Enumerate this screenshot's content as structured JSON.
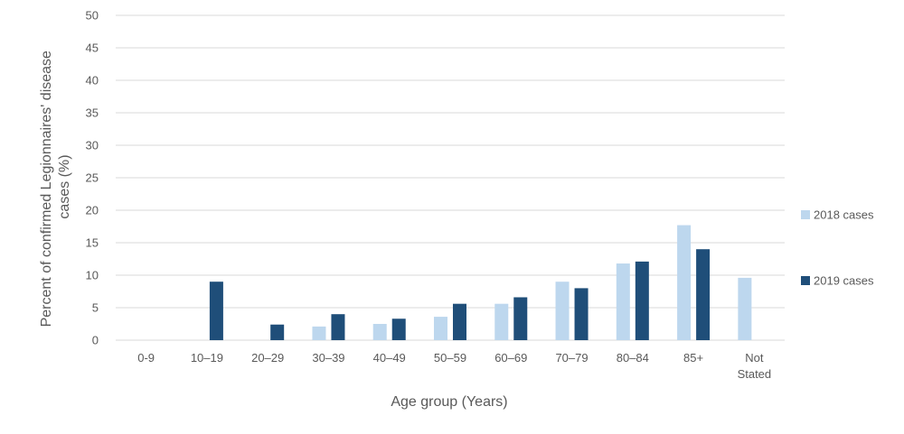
{
  "chart_data": {
    "type": "bar",
    "categories": [
      "0-9",
      "10–19",
      "20–29",
      "30–39",
      "40–49",
      "50–59",
      "60–69",
      "70–79",
      "80–84",
      "85+",
      "Not Stated"
    ],
    "series": [
      {
        "name": "2018 cases",
        "color": "#bdd7ee",
        "values": [
          0,
          0,
          0,
          2.1,
          2.5,
          3.6,
          5.6,
          9.0,
          11.8,
          17.7,
          9.6
        ]
      },
      {
        "name": "2019 cases",
        "color": "#1f4e79",
        "values": [
          0,
          9.0,
          2.4,
          4.0,
          3.3,
          5.6,
          6.6,
          8.0,
          12.1,
          14.0,
          0
        ]
      }
    ],
    "title": "",
    "xlabel": "Age group (Years)",
    "ylabel": "Percent of confirmed Legionnaires' disease cases (%)",
    "ylabel_lines": [
      "Percent of confirmed Legionnaires' disease",
      "cases (%)"
    ],
    "ylim": [
      0,
      50
    ],
    "yticks": [
      0,
      5,
      10,
      15,
      20,
      25,
      30,
      35,
      40,
      45,
      50
    ],
    "grid": true,
    "legend": "right"
  }
}
